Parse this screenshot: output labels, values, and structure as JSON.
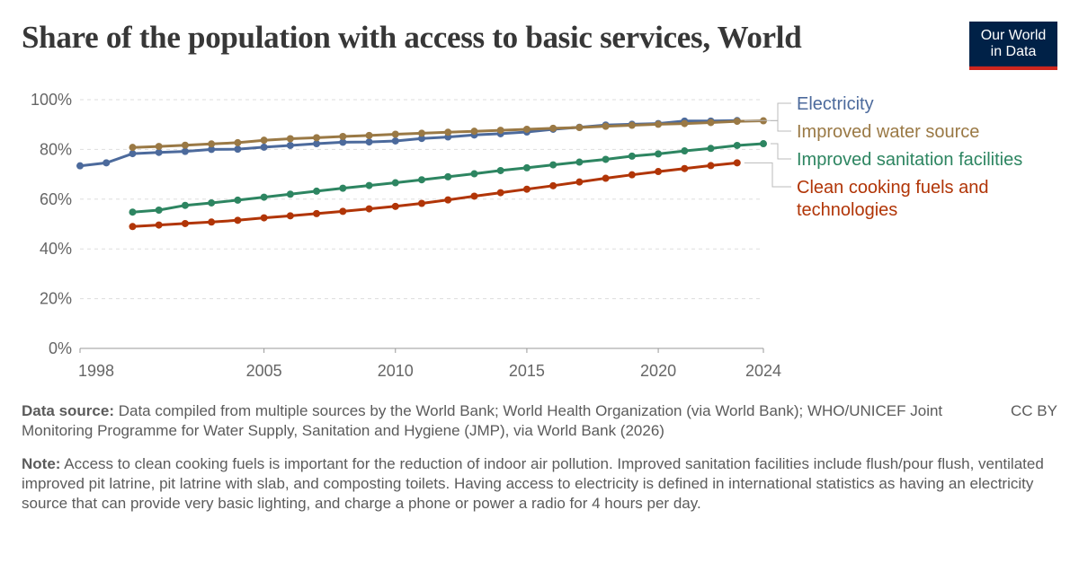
{
  "title": "Share of the population with access to basic services, World",
  "logo": {
    "line1": "Our World",
    "line2": "in Data"
  },
  "chart_data": {
    "type": "line",
    "ylim": [
      0,
      100
    ],
    "yticks": [
      0,
      20,
      40,
      60,
      80,
      100
    ],
    "ytick_labels": [
      "0%",
      "20%",
      "40%",
      "60%",
      "80%",
      "100%"
    ],
    "xlim": [
      1998,
      2024
    ],
    "xticks": [
      1998,
      2005,
      2010,
      2015,
      2020,
      2024
    ],
    "xtick_labels": [
      "1998",
      "2005",
      "2010",
      "2015",
      "2020",
      "2024"
    ],
    "grid": "horizontal dashed",
    "legend": "right",
    "series": [
      {
        "name": "Electricity",
        "color": "#4c6a9c",
        "x": [
          1998,
          1999,
          2000,
          2001,
          2002,
          2003,
          2004,
          2005,
          2006,
          2007,
          2008,
          2009,
          2010,
          2011,
          2012,
          2013,
          2014,
          2015,
          2016,
          2017,
          2018,
          2019,
          2020,
          2021,
          2022,
          2023
        ],
        "y": [
          73.4,
          74.6,
          78.3,
          78.8,
          79.2,
          80.0,
          80.1,
          80.9,
          81.6,
          82.3,
          82.9,
          83.0,
          83.4,
          84.4,
          85.0,
          85.8,
          86.3,
          87.0,
          88.1,
          88.9,
          89.8,
          90.1,
          90.4,
          91.4,
          91.4,
          91.6
        ]
      },
      {
        "name": "Improved water source",
        "color": "#9a7945",
        "x": [
          2000,
          2001,
          2002,
          2003,
          2004,
          2005,
          2006,
          2007,
          2008,
          2009,
          2010,
          2011,
          2012,
          2013,
          2014,
          2015,
          2016,
          2017,
          2018,
          2019,
          2020,
          2021,
          2022,
          2023,
          2024
        ],
        "y": [
          80.8,
          81.2,
          81.7,
          82.2,
          82.7,
          83.7,
          84.3,
          84.7,
          85.2,
          85.6,
          86.1,
          86.5,
          86.9,
          87.3,
          87.7,
          88.1,
          88.5,
          88.8,
          89.3,
          89.7,
          90.1,
          90.4,
          90.8,
          91.3,
          91.5
        ]
      },
      {
        "name": "Improved sanitation facilities",
        "color": "#2d8561",
        "x": [
          2000,
          2001,
          2002,
          2003,
          2004,
          2005,
          2006,
          2007,
          2008,
          2009,
          2010,
          2011,
          2012,
          2013,
          2014,
          2015,
          2016,
          2017,
          2018,
          2019,
          2020,
          2021,
          2022,
          2023,
          2024
        ],
        "y": [
          54.8,
          55.6,
          57.5,
          58.5,
          59.6,
          60.8,
          62.0,
          63.2,
          64.4,
          65.5,
          66.6,
          67.8,
          69.0,
          70.2,
          71.5,
          72.6,
          73.8,
          74.9,
          76.0,
          77.3,
          78.2,
          79.4,
          80.4,
          81.6,
          82.3
        ]
      },
      {
        "name": "Clean cooking fuels and technologies",
        "name_lines": [
          "Clean cooking fuels and",
          "technologies"
        ],
        "color": "#b13507",
        "x": [
          2000,
          2001,
          2002,
          2003,
          2004,
          2005,
          2006,
          2007,
          2008,
          2009,
          2010,
          2011,
          2012,
          2013,
          2014,
          2015,
          2016,
          2017,
          2018,
          2019,
          2020,
          2021,
          2022,
          2023
        ],
        "y": [
          49.0,
          49.6,
          50.2,
          50.8,
          51.5,
          52.5,
          53.3,
          54.2,
          55.1,
          56.1,
          57.1,
          58.3,
          59.7,
          61.2,
          62.6,
          64.0,
          65.4,
          66.9,
          68.4,
          69.8,
          71.1,
          72.3,
          73.5,
          74.6
        ]
      }
    ]
  },
  "footer": {
    "source_label": "Data source:",
    "source_text": "Data compiled from multiple sources by the World Bank; World Health Organization (via World Bank); WHO/UNICEF Joint Monitoring Programme for Water Supply, Sanitation and Hygiene (JMP), via World Bank (2026)",
    "license": "CC BY",
    "note_label": "Note:",
    "note_text": "Access to clean cooking fuels is important for the reduction of indoor air pollution. Improved sanitation facilities include flush/pour flush, ventilated improved pit latrine, pit latrine with slab, and composting toilets. Having access to electricity is defined in international statistics as having an electricity source that can provide very basic lighting, and charge a phone or power a radio for 4 hours per day."
  }
}
